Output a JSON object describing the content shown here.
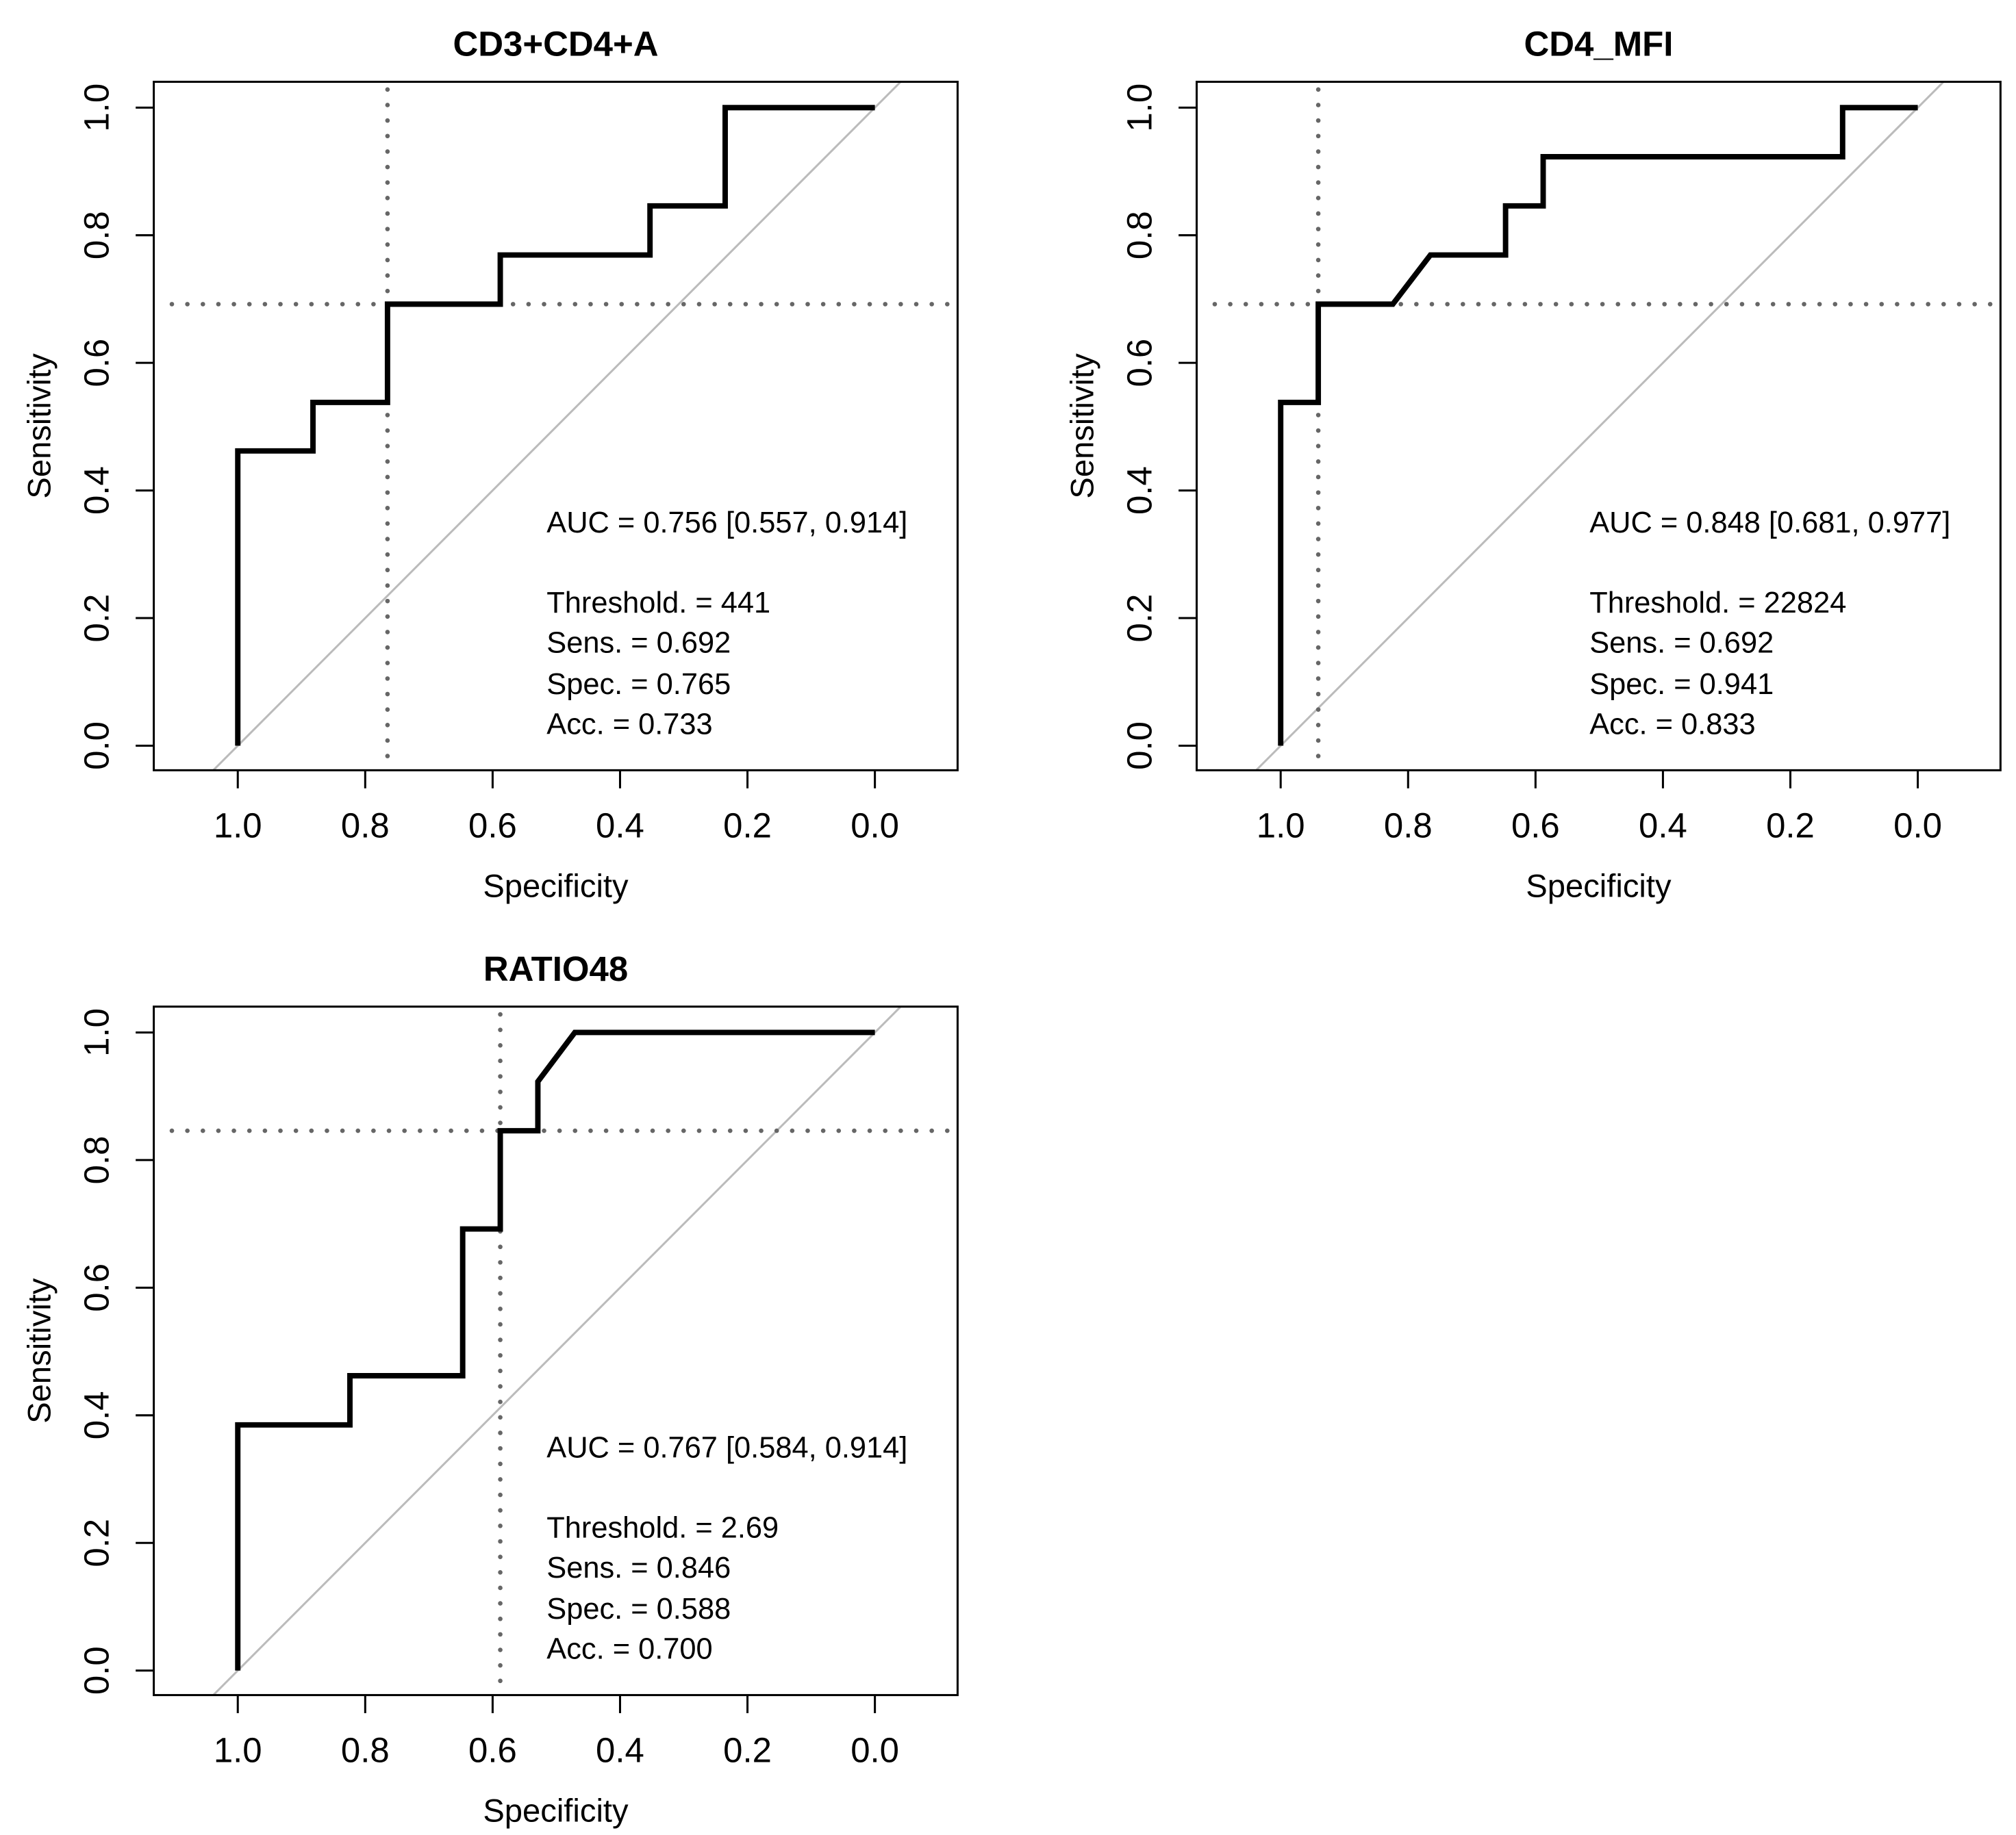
{
  "chart_data": [
    {
      "type": "line",
      "title": "CD3+CD4+A",
      "xlabel": "Specificity",
      "ylabel": "Sensitivity",
      "xlim": [
        1.0,
        0.0
      ],
      "ylim": [
        0.0,
        1.0
      ],
      "xticks": [
        "1.0",
        "0.8",
        "0.6",
        "0.4",
        "0.2",
        "0.0"
      ],
      "yticks": [
        "0.0",
        "0.2",
        "0.4",
        "0.6",
        "0.8",
        "1.0"
      ],
      "grid": false,
      "series": [
        {
          "name": "ROC",
          "points": [
            [
              1,
              0
            ],
            [
              1,
              0.462
            ],
            [
              0.882,
              0.462
            ],
            [
              0.882,
              0.538
            ],
            [
              0.765,
              0.538
            ],
            [
              0.765,
              0.692
            ],
            [
              0.588,
              0.692
            ],
            [
              0.588,
              0.769
            ],
            [
              0.353,
              0.769
            ],
            [
              0.353,
              0.846
            ],
            [
              0.235,
              0.846
            ],
            [
              0.235,
              1
            ],
            [
              0,
              1
            ]
          ]
        }
      ],
      "best_point": {
        "specificity": 0.765,
        "sensitivity": 0.692
      },
      "annotations": [
        "AUC = 0.756 [0.557, 0.914]",
        "Threshold. = 441",
        "Sens. = 0.692",
        "Spec. = 0.765",
        "Acc. = 0.733"
      ]
    },
    {
      "type": "line",
      "title": "CD4_MFI",
      "xlabel": "Specificity",
      "ylabel": "Sensitivity",
      "xlim": [
        1.0,
        0.0
      ],
      "ylim": [
        0.0,
        1.0
      ],
      "xticks": [
        "1.0",
        "0.8",
        "0.6",
        "0.4",
        "0.2",
        "0.0"
      ],
      "yticks": [
        "0.0",
        "0.2",
        "0.4",
        "0.6",
        "0.8",
        "1.0"
      ],
      "grid": false,
      "series": [
        {
          "name": "ROC",
          "points": [
            [
              1,
              0
            ],
            [
              1,
              0.538
            ],
            [
              0.941,
              0.538
            ],
            [
              0.941,
              0.692
            ],
            [
              0.824,
              0.692
            ],
            [
              0.765,
              0.769
            ],
            [
              0.647,
              0.769
            ],
            [
              0.647,
              0.846
            ],
            [
              0.588,
              0.846
            ],
            [
              0.588,
              0.923
            ],
            [
              0.118,
              0.923
            ],
            [
              0.118,
              1
            ],
            [
              0,
              1
            ]
          ]
        }
      ],
      "best_point": {
        "specificity": 0.941,
        "sensitivity": 0.692
      },
      "annotations": [
        "AUC = 0.848 [0.681, 0.977]",
        "Threshold. = 22824",
        "Sens. = 0.692",
        "Spec. = 0.941",
        "Acc. = 0.833"
      ]
    },
    {
      "type": "line",
      "title": "RATIO48",
      "xlabel": "Specificity",
      "ylabel": "Sensitivity",
      "xlim": [
        1.0,
        0.0
      ],
      "ylim": [
        0.0,
        1.0
      ],
      "xticks": [
        "1.0",
        "0.8",
        "0.6",
        "0.4",
        "0.2",
        "0.0"
      ],
      "yticks": [
        "0.0",
        "0.2",
        "0.4",
        "0.6",
        "0.8",
        "1.0"
      ],
      "grid": false,
      "series": [
        {
          "name": "ROC",
          "points": [
            [
              1,
              0
            ],
            [
              1,
              0.385
            ],
            [
              0.824,
              0.385
            ],
            [
              0.824,
              0.462
            ],
            [
              0.647,
              0.462
            ],
            [
              0.647,
              0.692
            ],
            [
              0.588,
              0.692
            ],
            [
              0.588,
              0.846
            ],
            [
              0.529,
              0.846
            ],
            [
              0.529,
              0.923
            ],
            [
              0.471,
              1
            ],
            [
              0,
              1
            ]
          ]
        }
      ],
      "best_point": {
        "specificity": 0.588,
        "sensitivity": 0.846
      },
      "annotations": [
        "AUC = 0.767 [0.584, 0.914]",
        "Threshold. = 2.69",
        "Sens. = 0.846",
        "Spec. = 0.588",
        "Acc. = 0.700"
      ]
    }
  ]
}
